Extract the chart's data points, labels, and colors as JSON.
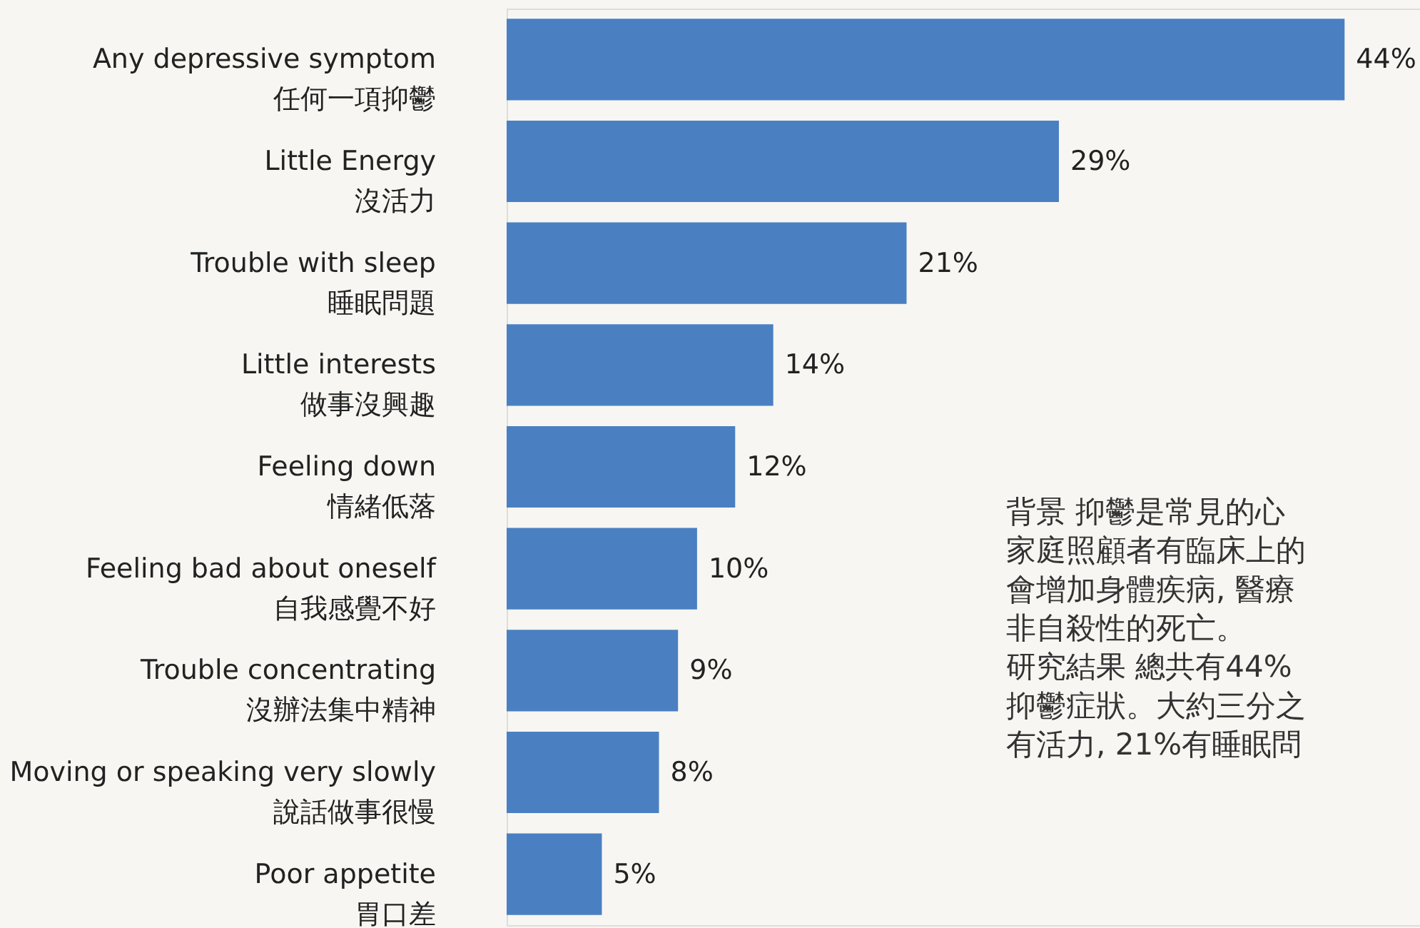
{
  "chart_data": {
    "type": "bar",
    "orientation": "horizontal",
    "categories": [
      "Any depressive symptom\n任何一項抑鬱",
      "Little Energy\n沒活力",
      "Trouble with sleep\n睡眠問題",
      "Little interests\n做事沒興趣",
      "Feeling down\n情緒低落",
      "Feeling bad about oneself\n自我感覺不好",
      "Trouble concentrating\n沒辦法集中精神",
      "Moving or speaking very slowly\n說話做事很慢",
      "Poor appetite\n胃口差"
    ],
    "values": [
      44,
      29,
      21,
      14,
      12,
      10,
      9,
      8,
      5
    ],
    "value_labels": [
      "44%",
      "29%",
      "21%",
      "14%",
      "12%",
      "10%",
      "9%",
      "8%",
      "5%"
    ],
    "color": "#4a80c2",
    "annotations": [
      "背景  抑鬱是常見的心",
      "家庭照顧者有臨床上的",
      "會增加身體疾病, 醫療",
      "非自殺性的死亡。",
      "研究結果  總共有44%",
      "抑鬱症狀。大約三分之",
      "有活力, 21%有睡眠問"
    ],
    "tick_labels": "y"
  }
}
